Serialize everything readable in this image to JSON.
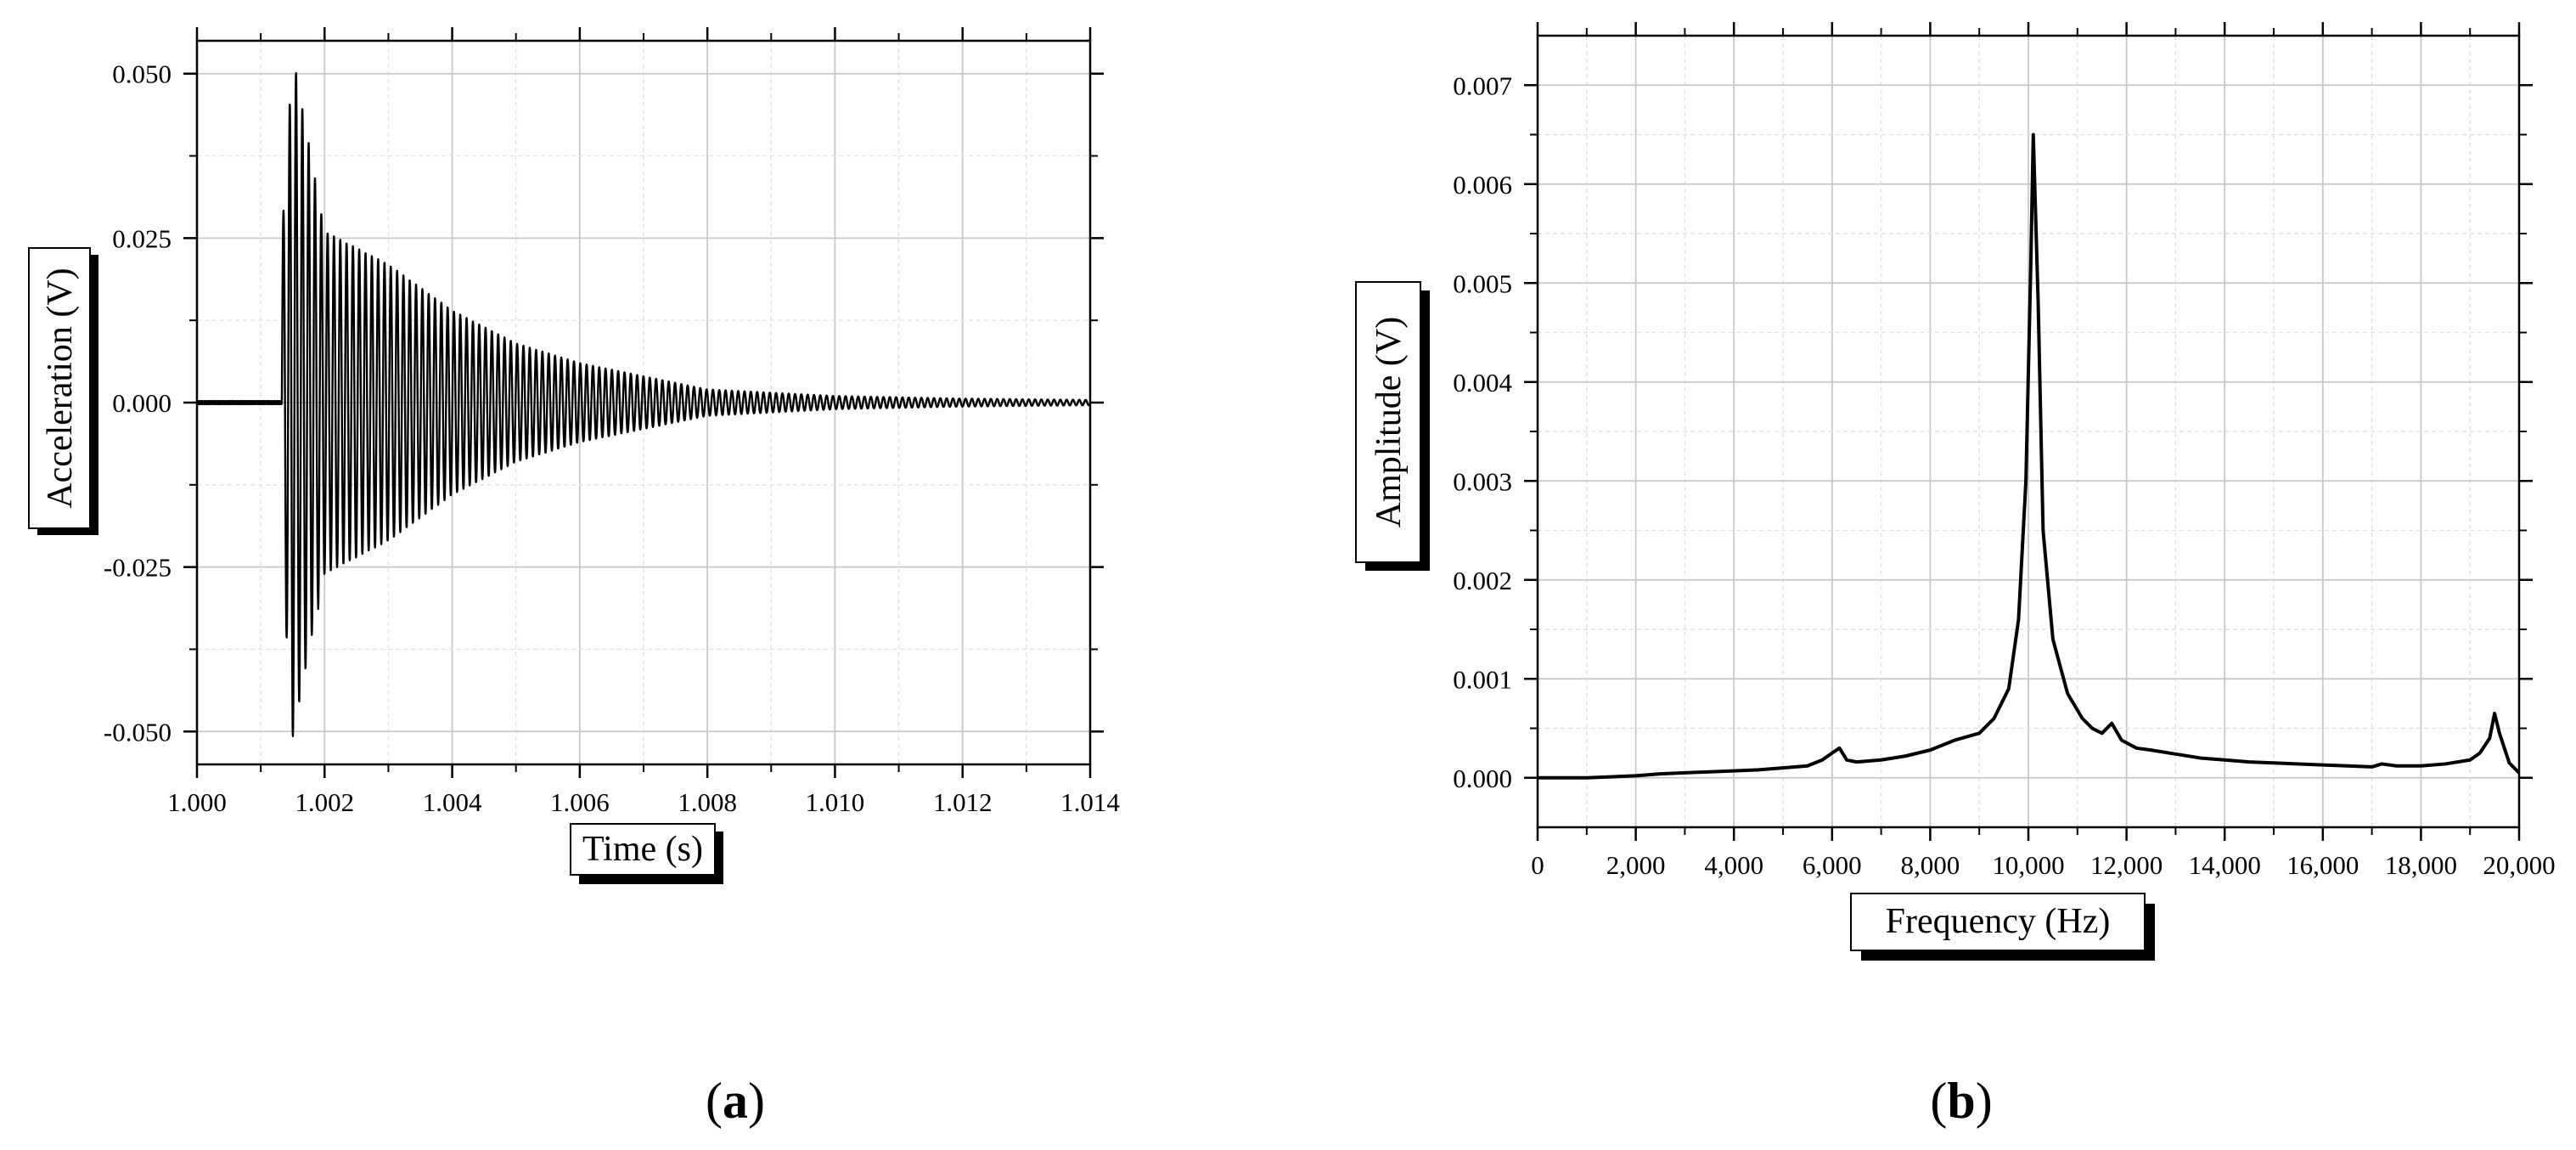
{
  "figure": {
    "panel_labels": [
      "a",
      "b"
    ]
  },
  "chart_data": [
    {
      "type": "line",
      "panel": "a",
      "title": "",
      "xlabel": "Time (s)",
      "ylabel": "Acceleration (V)",
      "xlim": [
        1.0,
        1.014
      ],
      "ylim": [
        -0.055,
        0.055
      ],
      "x_ticks": [
        "1.000",
        "1.002",
        "1.004",
        "1.006",
        "1.008",
        "1.010",
        "1.012",
        "1.014"
      ],
      "y_ticks": [
        "0.050",
        "0.025",
        "0.000",
        "-0.025",
        "-0.050"
      ],
      "grid": true,
      "legend": "none",
      "color": "#000000",
      "signal": {
        "description_type": "damped-sinusoid",
        "onset_time": 1.00133,
        "frequency_hz": 10100,
        "peak_positive": 0.054,
        "peak_negative": -0.051,
        "decay_time_constant": 0.0022,
        "baseline": 0.0
      },
      "envelope": {
        "t": [
          1.00133,
          1.0015,
          1.002,
          1.003,
          1.004,
          1.005,
          1.006,
          1.007,
          1.008,
          1.009,
          1.01,
          1.012,
          1.014
        ],
        "amplitude": [
          0.025,
          0.053,
          0.026,
          0.021,
          0.014,
          0.009,
          0.006,
          0.004,
          0.002,
          0.0015,
          0.001,
          0.0006,
          0.0004
        ]
      }
    },
    {
      "type": "line",
      "panel": "b",
      "title": "",
      "xlabel": "Frequency (Hz)",
      "ylabel": "Amplitude (V)",
      "xlim": [
        0,
        20000
      ],
      "ylim": [
        -0.0005,
        0.0075
      ],
      "x_ticks": [
        "0",
        "2,000",
        "4,000",
        "6,000",
        "8,000",
        "10,000",
        "12,000",
        "14,000",
        "16,000",
        "18,000",
        "20,000"
      ],
      "y_ticks": [
        "0.007",
        "0.006",
        "0.005",
        "0.004",
        "0.003",
        "0.002",
        "0.001",
        "0.000"
      ],
      "grid": true,
      "legend": "none",
      "color": "#000000",
      "x": [
        0,
        500,
        1000,
        1500,
        2000,
        2500,
        3000,
        3500,
        4000,
        4500,
        5000,
        5500,
        5800,
        6000,
        6150,
        6300,
        6500,
        7000,
        7500,
        8000,
        8500,
        9000,
        9300,
        9600,
        9800,
        9950,
        10050,
        10100,
        10200,
        10300,
        10500,
        10800,
        11100,
        11300,
        11500,
        11700,
        11900,
        12200,
        12500,
        13000,
        13500,
        14000,
        14500,
        15000,
        15500,
        16000,
        16500,
        17000,
        17200,
        17500,
        18000,
        18500,
        19000,
        19200,
        19400,
        19500,
        19600,
        19800,
        20000
      ],
      "y": [
        0.0,
        0.0,
        0.0,
        1e-05,
        2e-05,
        4e-05,
        5e-05,
        6e-05,
        7e-05,
        8e-05,
        0.0001,
        0.00012,
        0.00018,
        0.00025,
        0.0003,
        0.00018,
        0.00016,
        0.00018,
        0.00022,
        0.00028,
        0.00038,
        0.00045,
        0.0006,
        0.0009,
        0.0016,
        0.003,
        0.0052,
        0.0065,
        0.0048,
        0.0025,
        0.0014,
        0.00085,
        0.0006,
        0.0005,
        0.00045,
        0.00055,
        0.00038,
        0.0003,
        0.00028,
        0.00024,
        0.0002,
        0.00018,
        0.00016,
        0.00015,
        0.00014,
        0.00013,
        0.00012,
        0.00011,
        0.00014,
        0.00012,
        0.00012,
        0.00014,
        0.00018,
        0.00025,
        0.0004,
        0.00065,
        0.00045,
        0.00015,
        5e-05
      ]
    }
  ]
}
